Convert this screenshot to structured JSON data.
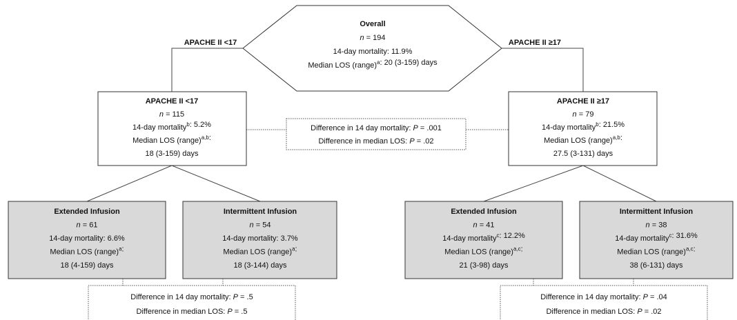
{
  "overall": {
    "title": "Overall",
    "lines": [
      [
        {
          "italic": "n"
        },
        " = 194"
      ],
      [
        "14-day mortality: 11.9%"
      ],
      [
        "Median LOS (range)",
        {
          "sup": "a"
        },
        ": 20 (3-159) days"
      ]
    ]
  },
  "branch_labels": [
    "APACHE II <17",
    "APACHE II ≥17"
  ],
  "groups": [
    {
      "title": "APACHE II <17",
      "lines": [
        [
          {
            "italic": "n"
          },
          " = 115"
        ],
        [
          "14-day mortality",
          {
            "sup": "b"
          },
          ": 5.2%"
        ],
        [
          "Median LOS (range)",
          {
            "sup": "a,b"
          },
          ":"
        ],
        [
          "18 (3-159) days"
        ]
      ]
    },
    {
      "title": "APACHE II ≥17",
      "lines": [
        [
          {
            "italic": "n"
          },
          " = 79"
        ],
        [
          "14-day mortality",
          {
            "sup": "b"
          },
          ": 21.5%"
        ],
        [
          "Median LOS (range)",
          {
            "sup": "a,b"
          },
          ":"
        ],
        [
          "27.5 (3-131) days"
        ]
      ]
    }
  ],
  "subgroups": [
    {
      "title": "Extended Infusion",
      "lines": [
        [
          {
            "italic": "n"
          },
          " = 61"
        ],
        [
          "14-day mortality: 6.6%"
        ],
        [
          "Median LOS (range)",
          {
            "sup": "a"
          },
          ":"
        ],
        [
          "18 (4-159) days"
        ]
      ]
    },
    {
      "title": "Intermittent Infusion",
      "lines": [
        [
          {
            "italic": "n"
          },
          " = 54"
        ],
        [
          "14-day mortality: 3.7%"
        ],
        [
          "Median LOS (range)",
          {
            "sup": "a"
          },
          ":"
        ],
        [
          "18 (3-144) days"
        ]
      ]
    },
    {
      "title": "Extended Infusion",
      "lines": [
        [
          {
            "italic": "n"
          },
          " = 41"
        ],
        [
          "14-day mortality",
          {
            "sup": "c"
          },
          ": 12.2%"
        ],
        [
          "Median LOS (range)",
          {
            "sup": "a,c"
          },
          ":"
        ],
        [
          "21 (3-98) days"
        ]
      ]
    },
    {
      "title": "Intermittent Infusion",
      "lines": [
        [
          {
            "italic": "n"
          },
          " = 38"
        ],
        [
          "14-day mortality",
          {
            "sup": "c"
          },
          ": 31.6%"
        ],
        [
          "Median LOS (range)",
          {
            "sup": "a,c"
          },
          ":"
        ],
        [
          "38 (6-131) days"
        ]
      ]
    }
  ],
  "comparisons": [
    {
      "lines": [
        [
          "Difference in 14 day mortality: ",
          {
            "italic": "P"
          },
          " = .001"
        ],
        [
          "Difference in median LOS: ",
          {
            "italic": "P"
          },
          " = .02"
        ]
      ]
    },
    {
      "lines": [
        [
          "Difference in 14 day mortality: ",
          {
            "italic": "P"
          },
          " = .5"
        ],
        [
          "Difference in median LOS: ",
          {
            "italic": "P"
          },
          " = .5"
        ]
      ]
    },
    {
      "lines": [
        [
          "Difference in 14 day mortality: ",
          {
            "italic": "P"
          },
          " = .04"
        ],
        [
          "Difference in median LOS: ",
          {
            "italic": "P"
          },
          " = .02"
        ]
      ]
    }
  ]
}
